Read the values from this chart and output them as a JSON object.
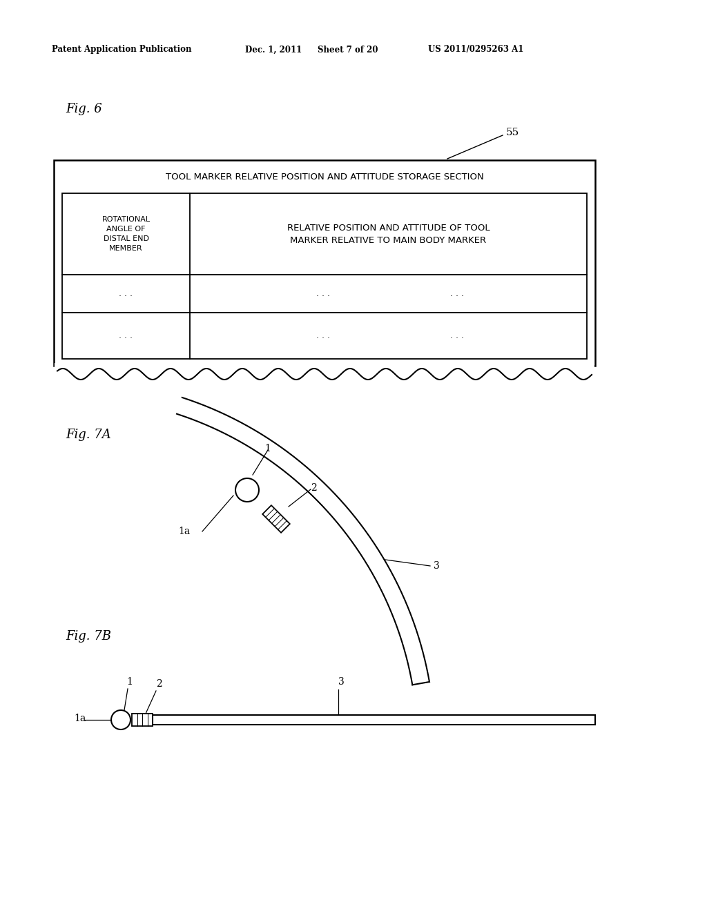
{
  "bg_color": "#ffffff",
  "header_text": "Patent Application Publication",
  "header_date": "Dec. 1, 2011",
  "header_sheet": "Sheet 7 of 20",
  "header_patent": "US 2011/0295263 A1",
  "fig6_label": "Fig. 6",
  "fig7a_label": "Fig. 7A",
  "fig7b_label": "Fig. 7B",
  "table_header": "TOOL MARKER RELATIVE POSITION AND ATTITUDE STORAGE SECTION",
  "col1_header": "ROTATIONAL\nANGLE OF\nDISTAL END\nMEMBER",
  "col2_header": "RELATIVE POSITION AND ATTITUDE OF TOOL\nMARKER RELATIVE TO MAIN BODY MARKER",
  "label_55": "55",
  "dots": ". . .",
  "label_1": "1",
  "label_1a": "1a",
  "label_2": "2",
  "label_3": "3"
}
